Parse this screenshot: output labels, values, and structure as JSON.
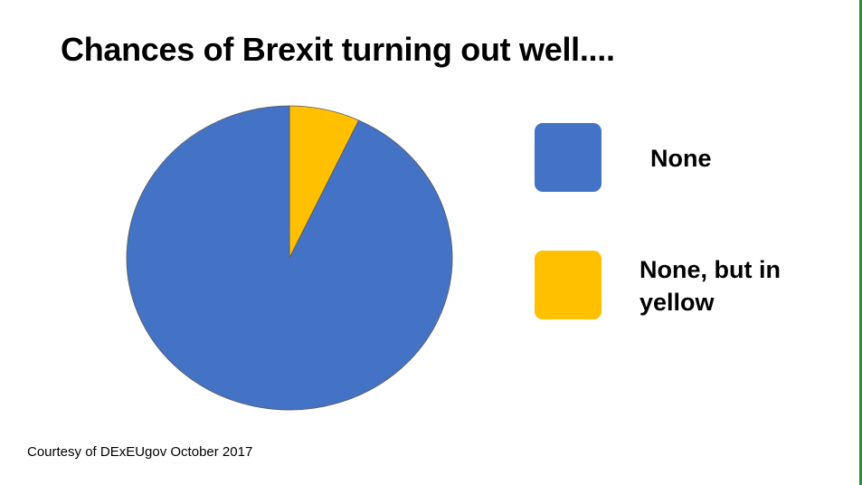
{
  "chart_data": {
    "type": "pie",
    "title": "Chances of Brexit turning out well....",
    "slices": [
      {
        "label": "None",
        "value": 93,
        "color": "#4472C4"
      },
      {
        "label": "None, but in yellow",
        "value": 7,
        "color": "#FFC000"
      }
    ],
    "legend": "right",
    "source": "Courtesy of DExEUgov October 2017"
  }
}
